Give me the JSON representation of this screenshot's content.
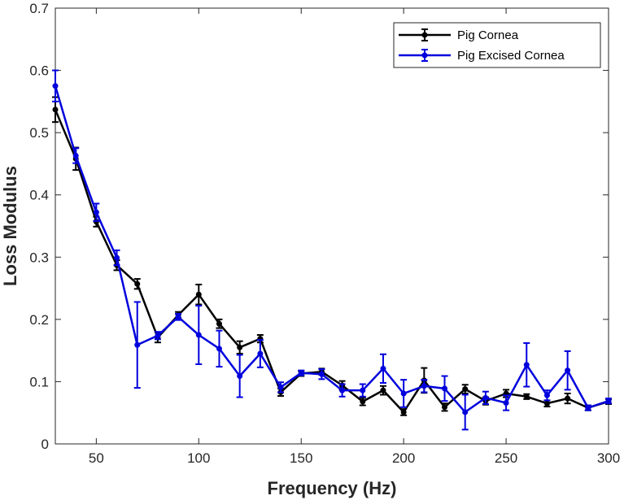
{
  "chart_data": {
    "type": "line",
    "xlabel": "Frequency (Hz)",
    "ylabel": "Loss Modulus",
    "xlim": [
      30,
      300
    ],
    "ylim": [
      0,
      0.7
    ],
    "xticks": [
      50,
      100,
      150,
      200,
      250,
      300
    ],
    "yticks": [
      0,
      0.1,
      0.2,
      0.3,
      0.4,
      0.5,
      0.6,
      0.7
    ],
    "grid": false,
    "legend_position": "top-right",
    "x": [
      30,
      40,
      50,
      60,
      70,
      80,
      90,
      100,
      110,
      120,
      130,
      140,
      150,
      160,
      170,
      180,
      190,
      200,
      210,
      220,
      230,
      240,
      250,
      260,
      270,
      280,
      290,
      300
    ],
    "series": [
      {
        "name": "Pig Cornea",
        "color": "#000000",
        "values": [
          0.537,
          0.458,
          0.357,
          0.287,
          0.257,
          0.171,
          0.207,
          0.24,
          0.193,
          0.155,
          0.169,
          0.083,
          0.113,
          0.116,
          0.094,
          0.068,
          0.086,
          0.051,
          0.102,
          0.059,
          0.088,
          0.069,
          0.081,
          0.076,
          0.065,
          0.073,
          0.058,
          0.068
        ],
        "errors": [
          0.02,
          0.018,
          0.008,
          0.008,
          0.008,
          0.008,
          0.005,
          0.016,
          0.007,
          0.01,
          0.006,
          0.006,
          0.004,
          0.005,
          0.007,
          0.006,
          0.007,
          0.005,
          0.02,
          0.006,
          0.007,
          0.006,
          0.006,
          0.004,
          0.005,
          0.008,
          0.004,
          0.004
        ]
      },
      {
        "name": "Pig Excised Cornea",
        "color": "#0000dd",
        "values": [
          0.575,
          0.463,
          0.372,
          0.299,
          0.159,
          0.174,
          0.204,
          0.175,
          0.153,
          0.109,
          0.145,
          0.091,
          0.114,
          0.112,
          0.086,
          0.086,
          0.121,
          0.081,
          0.093,
          0.089,
          0.051,
          0.074,
          0.066,
          0.127,
          0.078,
          0.118,
          0.058,
          0.069
        ],
        "errors": [
          0.025,
          0.012,
          0.014,
          0.012,
          0.069,
          0.006,
          0.005,
          0.047,
          0.029,
          0.034,
          0.022,
          0.008,
          0.004,
          0.008,
          0.01,
          0.01,
          0.023,
          0.022,
          0.01,
          0.02,
          0.028,
          0.01,
          0.012,
          0.035,
          0.008,
          0.031,
          0.004,
          0.004
        ]
      }
    ]
  }
}
